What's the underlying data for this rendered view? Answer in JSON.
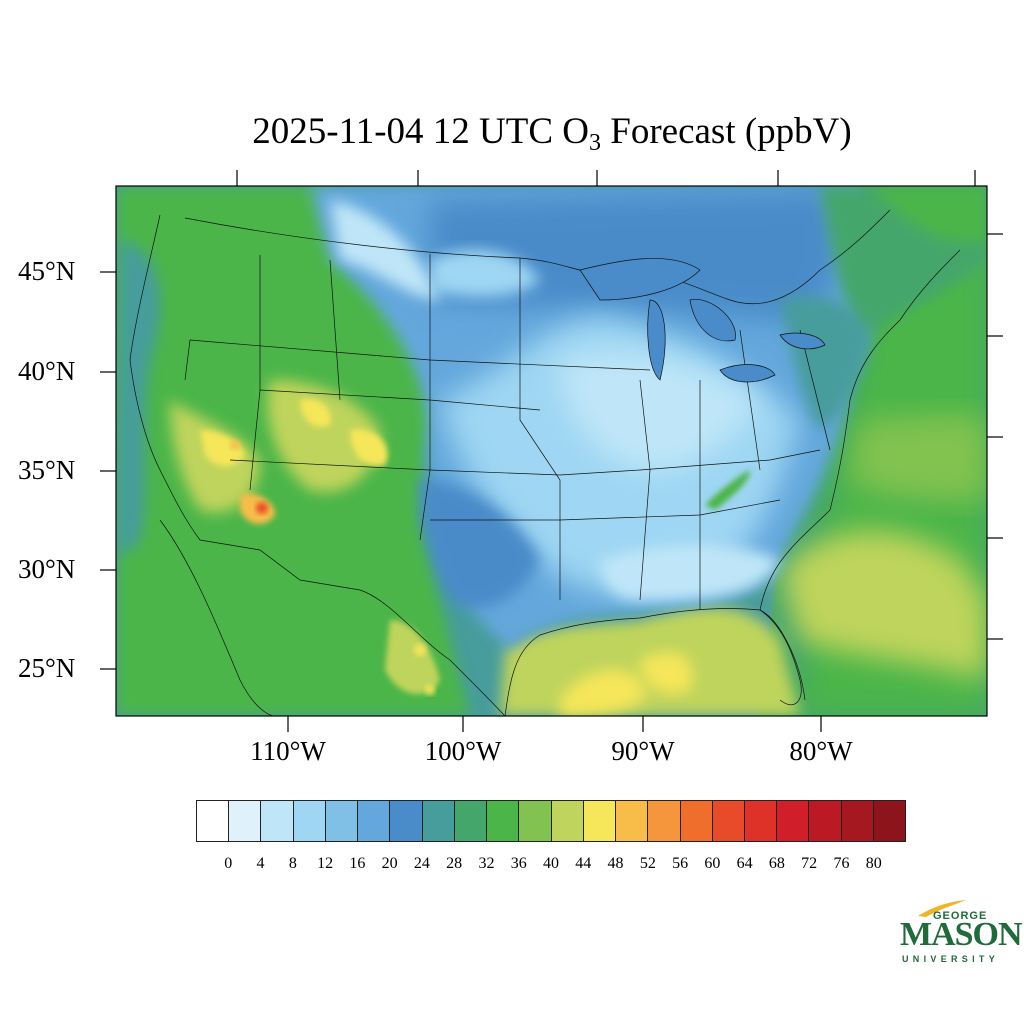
{
  "title": {
    "prefix": "2025-11-04 12 UTC O",
    "subscript": "3",
    "suffix": " Forecast (ppbV)"
  },
  "map": {
    "projection": "Lambert conformal (CONUS)",
    "variable": "O3",
    "units": "ppbV",
    "lat_labels": [
      "45°N",
      "40°N",
      "35°N",
      "30°N",
      "25°N"
    ],
    "lon_labels": [
      "110°W",
      "100°W",
      "90°W",
      "80°W"
    ],
    "regional_levels": [
      {
        "region": "Desert Southwest / Four Corners",
        "approx_ppbV": "44-56",
        "peak_ppbV": "60-64"
      },
      {
        "region": "Colorado Front Range",
        "approx_ppbV": "44-52"
      },
      {
        "region": "Pacific Northwest / Idaho",
        "approx_ppbV": "32-44"
      },
      {
        "region": "Northern Plains / Great Lakes",
        "approx_ppbV": "4-20"
      },
      {
        "region": "Ohio Valley / Midwest",
        "approx_ppbV": "8-16"
      },
      {
        "region": "Southeast US",
        "approx_ppbV": "8-20"
      },
      {
        "region": "Gulf of Mexico",
        "approx_ppbV": "40-48"
      },
      {
        "region": "Western Atlantic offshore",
        "approx_ppbV": "36-44"
      },
      {
        "region": "Northern Mexico highlands",
        "approx_ppbV": "40-52"
      }
    ]
  },
  "colorbar": {
    "colors": [
      "#ffffff",
      "#dff1fb",
      "#bfe6f8",
      "#9ed6f3",
      "#80bfe6",
      "#63a7dc",
      "#4a8bc9",
      "#479c9c",
      "#45a66c",
      "#4cb54a",
      "#82c250",
      "#bfd45c",
      "#f5e65a",
      "#f7bd48",
      "#f5963d",
      "#f06e2c",
      "#e84b2a",
      "#de3128",
      "#d11f2a",
      "#bb1a25",
      "#a61820",
      "#8e141c"
    ],
    "tick_labels": [
      "0",
      "4",
      "8",
      "12",
      "16",
      "20",
      "24",
      "28",
      "32",
      "36",
      "40",
      "44",
      "48",
      "52",
      "56",
      "60",
      "64",
      "68",
      "72",
      "76",
      "80"
    ]
  },
  "logo": {
    "line1": "GEORGE",
    "line2": "MASON",
    "line3": "UNIVERSITY"
  }
}
